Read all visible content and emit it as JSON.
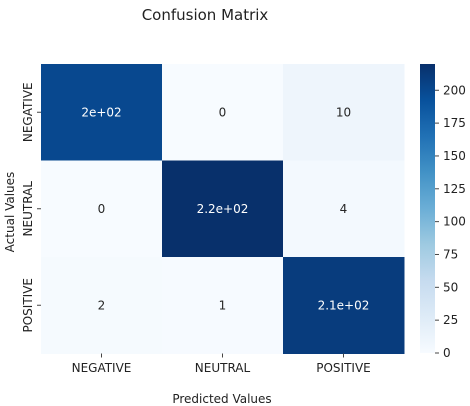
{
  "chart_data": {
    "type": "heatmap",
    "title": "Confusion Matrix",
    "xlabel": "Predicted Values",
    "ylabel": "Actual Values",
    "x_categories": [
      "NEGATIVE",
      "NEUTRAL",
      "POSITIVE"
    ],
    "y_categories": [
      "NEGATIVE",
      "NEUTRAL",
      "POSITIVE"
    ],
    "values": [
      [
        200,
        0,
        10
      ],
      [
        0,
        220,
        4
      ],
      [
        2,
        1,
        210
      ]
    ],
    "annotations": [
      [
        "2e+02",
        "0",
        "10"
      ],
      [
        "0",
        "2.2e+02",
        "4"
      ],
      [
        "2",
        "1",
        "2.1e+02"
      ]
    ],
    "colorbar": {
      "min": 0,
      "max": 220,
      "ticks": [
        0,
        25,
        50,
        75,
        100,
        125,
        150,
        175,
        200
      ],
      "colormap": "Blues",
      "colors": [
        "#f7fbff",
        "#deebf7",
        "#c6dbef",
        "#9ecae1",
        "#6baed6",
        "#4292c6",
        "#2171b5",
        "#08519c",
        "#08306b"
      ]
    }
  }
}
